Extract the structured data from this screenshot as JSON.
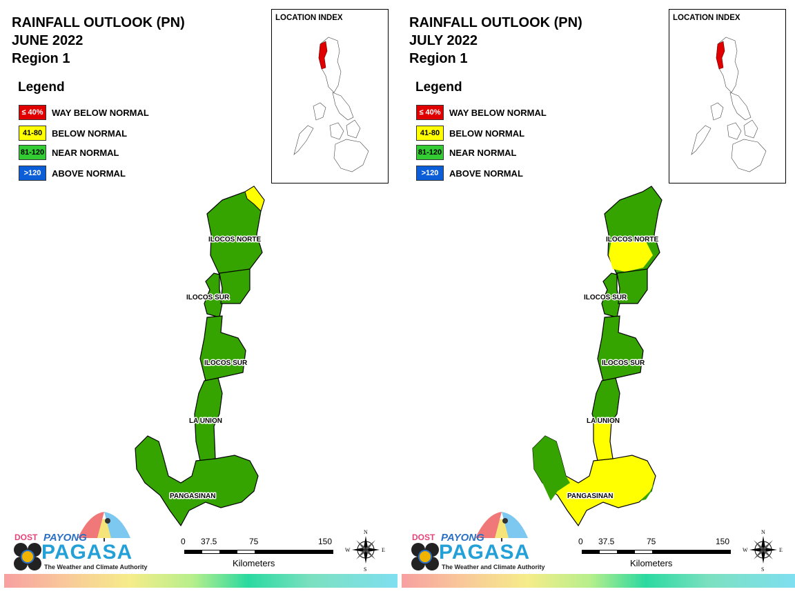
{
  "panels": [
    {
      "title_line1": "RAINFALL OUTLOOK (PN)",
      "title_line2": "JUNE 2022",
      "title_line3": "Region 1",
      "legend_title": "Legend",
      "location_index_title": "LOCATION INDEX",
      "labels": {
        "ilocos_norte": "ILOCOS NORTE",
        "ilocos_sur_1": "ILOCOS SUR",
        "ilocos_sur_2": "ILOCOS SUR",
        "la_union": "LA UNION",
        "pangasinan": "PANGASINAN"
      },
      "scale": {
        "t0": "0",
        "t1": "37.5",
        "t2": "75",
        "t3": "150",
        "unit": "Kilometers"
      },
      "compass": {
        "n": "N",
        "s": "S",
        "e": "E",
        "w": "W"
      },
      "logo": {
        "dost": "DOST",
        "payong": "PAYONG",
        "pagasa": "PAGASA",
        "tagline": "The Weather and Climate Authority"
      }
    },
    {
      "title_line1": "RAINFALL OUTLOOK (PN)",
      "title_line2": "JULY 2022",
      "title_line3": "Region 1",
      "legend_title": "Legend",
      "location_index_title": "LOCATION INDEX",
      "labels": {
        "ilocos_norte": "ILOCOS NORTE",
        "ilocos_sur_1": "ILOCOS SUR",
        "ilocos_sur_2": "ILOCOS SUR",
        "la_union": "LA UNION",
        "pangasinan": "PANGASINAN"
      },
      "scale": {
        "t0": "0",
        "t1": "37.5",
        "t2": "75",
        "t3": "150",
        "unit": "Kilometers"
      },
      "compass": {
        "n": "N",
        "s": "S",
        "e": "E",
        "w": "W"
      },
      "logo": {
        "dost": "DOST",
        "payong": "PAYONG",
        "pagasa": "PAGASA",
        "tagline": "The Weather and Climate Authority"
      }
    }
  ],
  "legend": [
    {
      "swatch": "≤ 40%",
      "label": "WAY BELOW NORMAL",
      "color": "#e00000",
      "text_color": "#ffffff"
    },
    {
      "swatch": "41-80",
      "label": "BELOW NORMAL",
      "color": "#ffff00",
      "text_color": "#000000"
    },
    {
      "swatch": "81-120",
      "label": "NEAR NORMAL",
      "color": "#33cc33",
      "text_color": "#000000"
    },
    {
      "swatch": ">120",
      "label": "ABOVE NORMAL",
      "color": "#0b5ed7",
      "text_color": "#ffffff"
    }
  ],
  "colors": {
    "near_normal_fill": "#35a400",
    "below_normal_fill": "#ffff00",
    "way_below_normal_fill": "#e00000"
  }
}
